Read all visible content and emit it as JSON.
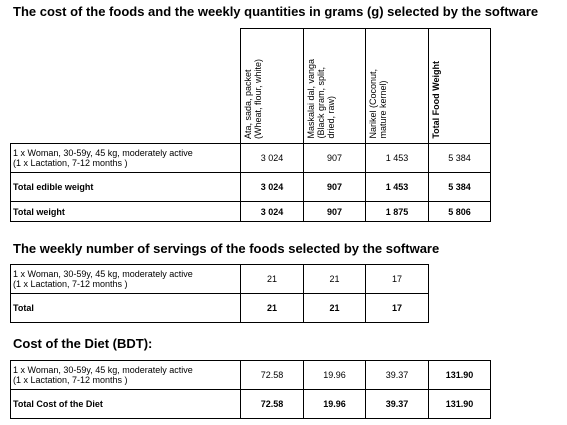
{
  "section1": {
    "title": "The cost of the foods and the weekly quantities in grams (g) selected by the software",
    "headers": [
      "Ata, sada, packet\n(Wheat, flour, white)",
      "Maskalai dal, vanga\n(Black gram, split,\ndried, raw)",
      "Narikel (Coconut,\nmature kernel)",
      "Total Food Weight"
    ],
    "rows": [
      {
        "label_line1": "1 x Woman, 30-59y, 45 kg, moderately active",
        "label_line2": "(1 x Lactation, 7-12 months )",
        "values": [
          "3 024",
          "907",
          "1 453",
          "5 384"
        ]
      },
      {
        "label": "Total edible weight",
        "values": [
          "3 024",
          "907",
          "1 453",
          "5 384"
        ]
      },
      {
        "label": "Total weight",
        "values": [
          "3 024",
          "907",
          "1 875",
          "5 806"
        ]
      }
    ]
  },
  "section2": {
    "title": "The weekly number of servings of the foods selected by the software",
    "rows": [
      {
        "label_line1": "1 x Woman, 30-59y, 45 kg, moderately active",
        "label_line2": "(1 x Lactation, 7-12 months )",
        "values": [
          "21",
          "21",
          "17"
        ]
      },
      {
        "label": "Total",
        "values": [
          "21",
          "21",
          "17"
        ]
      }
    ]
  },
  "section3": {
    "title": "Cost of the Diet (BDT):",
    "rows": [
      {
        "label_line1": "1 x Woman, 30-59y, 45 kg, moderately active",
        "label_line2": "(1 x Lactation, 7-12 months )",
        "values": [
          "72.58",
          "19.96",
          "39.37",
          "131.90"
        ]
      },
      {
        "label": "Total Cost of the Diet",
        "values": [
          "72.58",
          "19.96",
          "39.37",
          "131.90"
        ]
      }
    ]
  }
}
